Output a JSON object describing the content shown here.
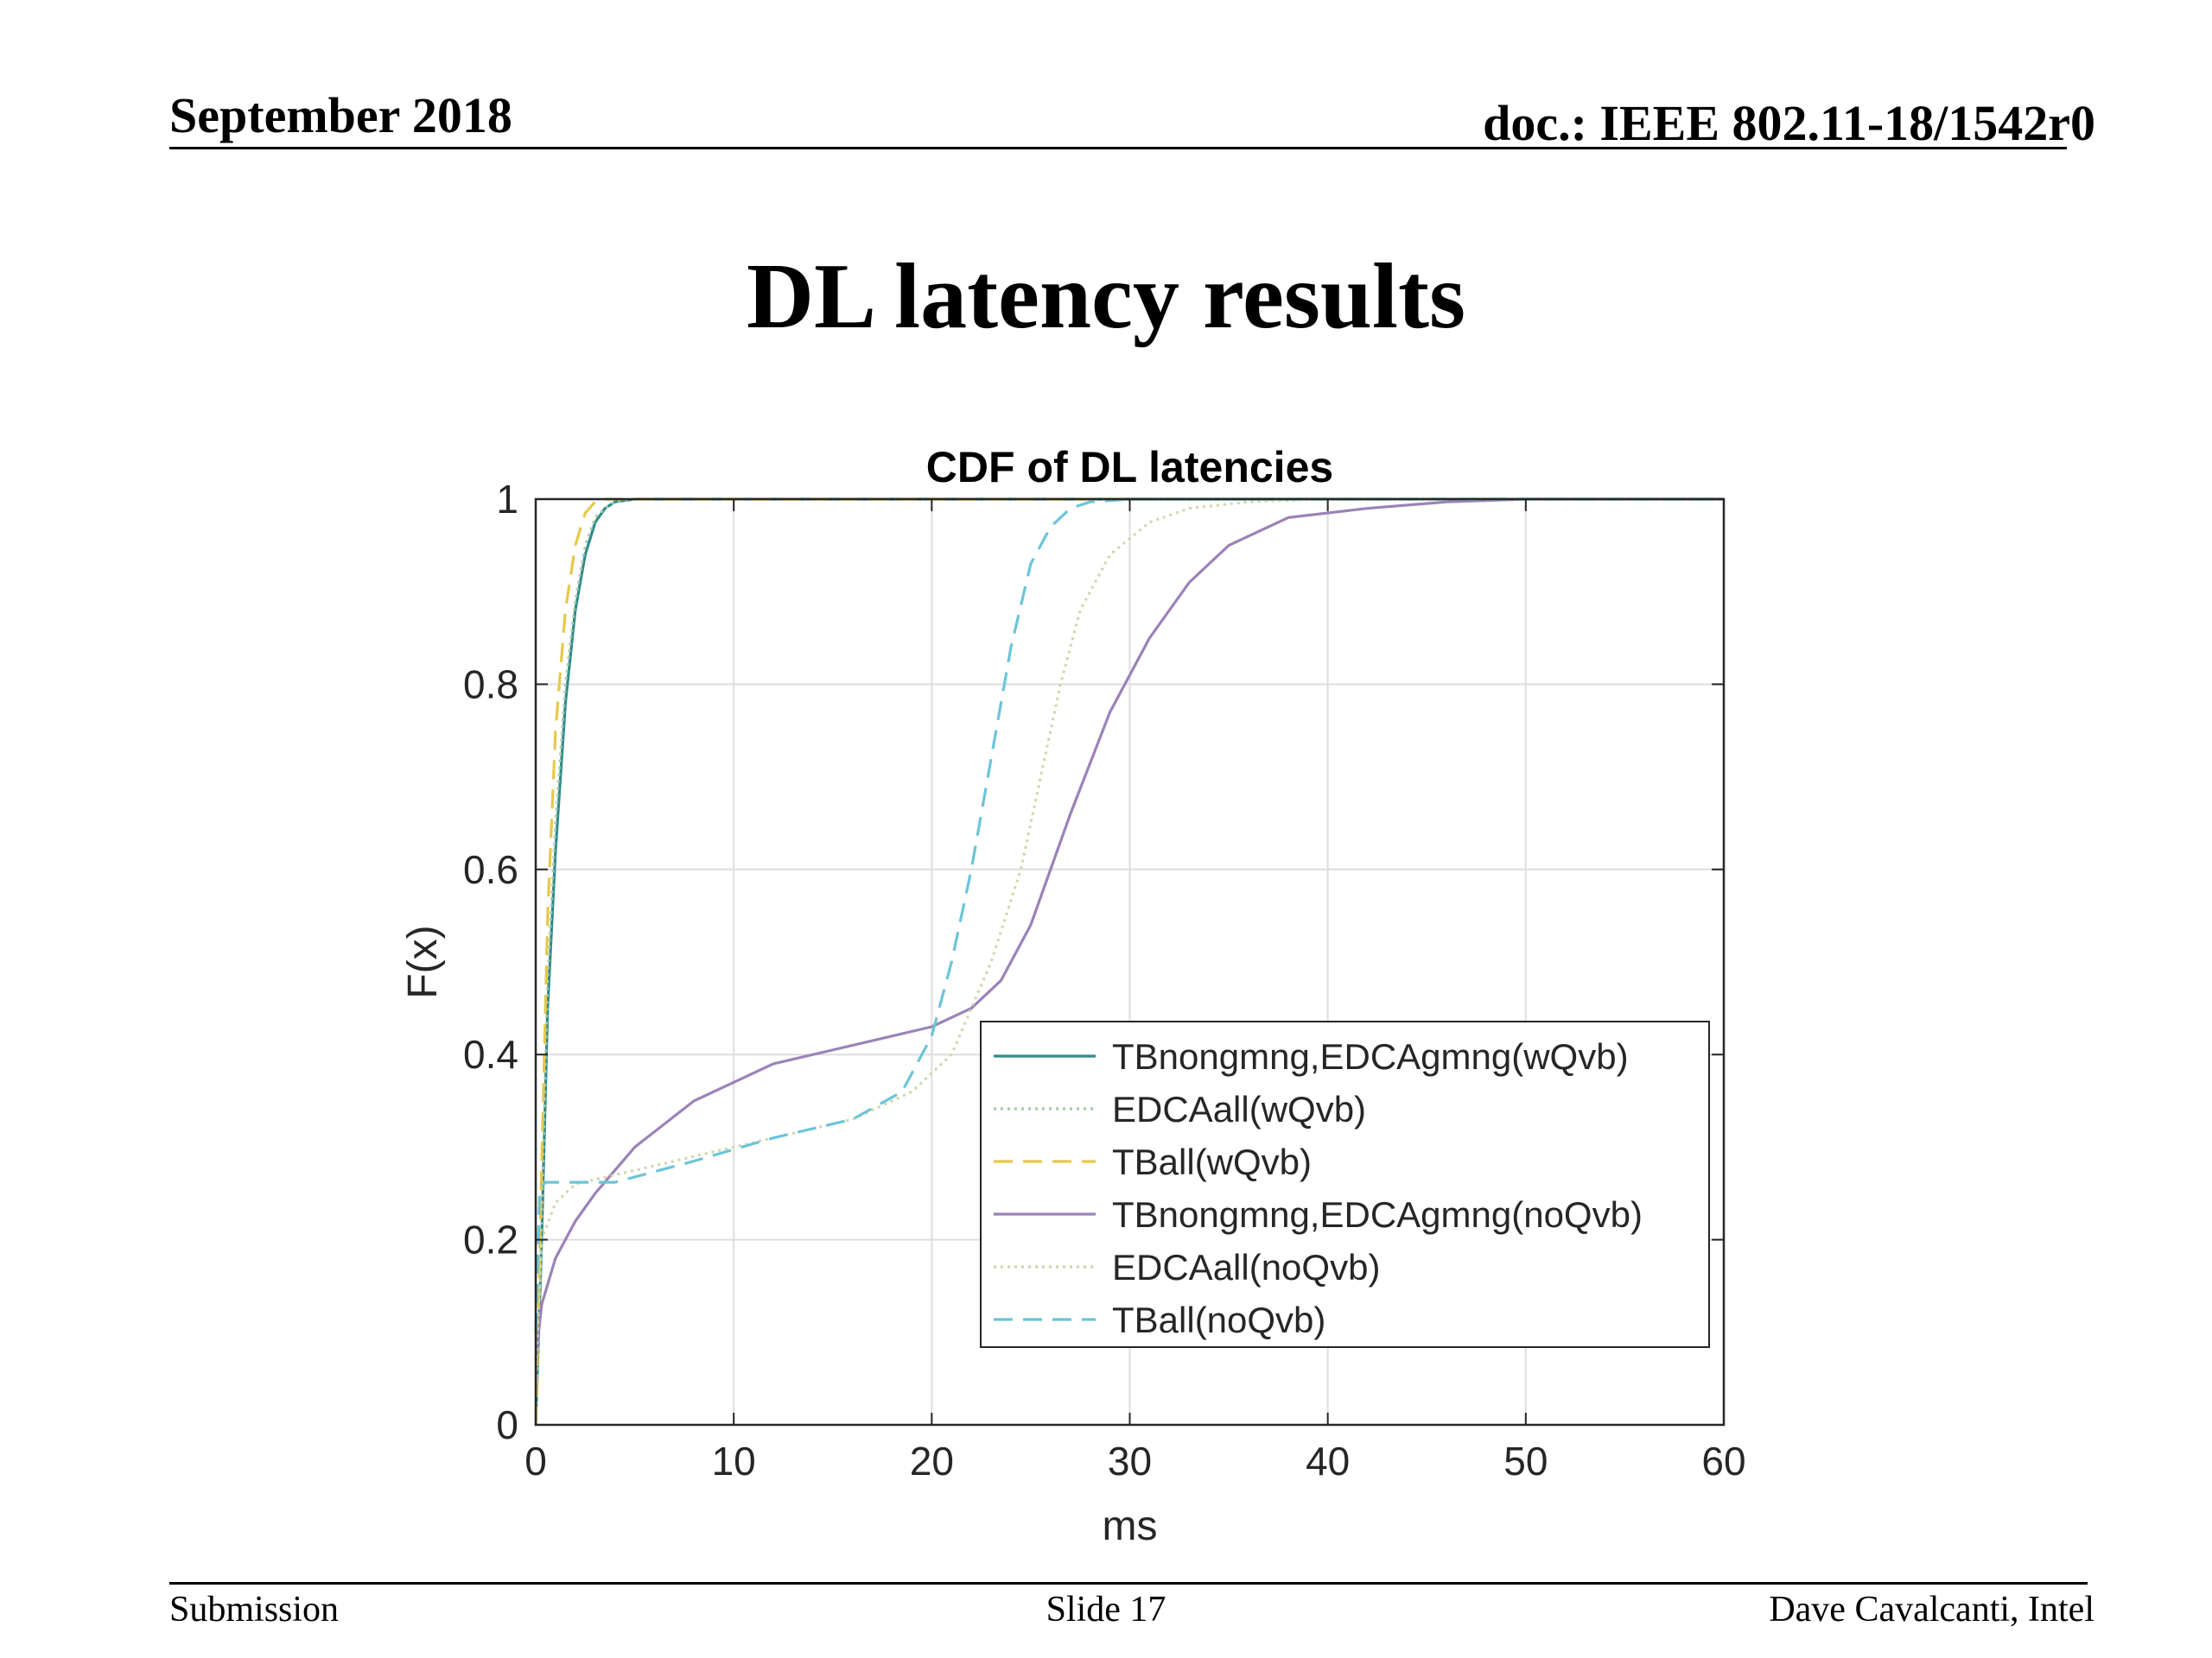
{
  "header": {
    "date": "September 2018",
    "doc": "doc.: IEEE 802.11-18/1542r0"
  },
  "slide": {
    "title": "DL latency results"
  },
  "footer": {
    "left": "Submission",
    "center": "Slide 17",
    "right": "Dave Cavalcanti, Intel"
  },
  "chart_data": {
    "type": "line",
    "title": "CDF of DL latencies",
    "xlabel": "ms",
    "ylabel": "F(x)",
    "xlim": [
      0,
      60
    ],
    "ylim": [
      0,
      1
    ],
    "xticks": [
      0,
      10,
      20,
      30,
      40,
      50,
      60
    ],
    "yticks": [
      0,
      0.2,
      0.4,
      0.6,
      0.8,
      1
    ],
    "xtick_labels": [
      "0",
      "10",
      "20",
      "30",
      "40",
      "50",
      "60"
    ],
    "ytick_labels": [
      "0",
      "0.2",
      "0.4",
      "0.6",
      "0.8",
      "1"
    ],
    "grid": true,
    "legend_position": "lower-right",
    "series": [
      {
        "name": "TBnongmng,EDCAgmng(wQvb)",
        "color": "#2e8b8b",
        "dash": "solid",
        "x": [
          0,
          0.3,
          0.6,
          1,
          1.5,
          2,
          2.5,
          3,
          3.5,
          4,
          5,
          60
        ],
        "y": [
          0,
          0.2,
          0.45,
          0.62,
          0.78,
          0.88,
          0.94,
          0.975,
          0.99,
          0.997,
          1,
          1
        ]
      },
      {
        "name": "EDCAall(wQvb)",
        "color": "#a8c8a8",
        "dash": "dotted",
        "x": [
          0,
          0.3,
          0.6,
          1,
          1.5,
          2,
          2.5,
          3,
          3.5,
          4,
          5,
          60
        ],
        "y": [
          0,
          0.22,
          0.48,
          0.65,
          0.8,
          0.89,
          0.95,
          0.98,
          0.99,
          0.997,
          1,
          1
        ]
      },
      {
        "name": "TBall(wQvb)",
        "color": "#e6c84a",
        "dash": "dashed",
        "x": [
          0,
          0.3,
          0.6,
          1,
          1.5,
          2,
          2.5,
          3,
          3.5,
          60
        ],
        "y": [
          0,
          0.28,
          0.55,
          0.75,
          0.88,
          0.95,
          0.985,
          0.997,
          1,
          1
        ]
      },
      {
        "name": "TBnongmng,EDCAgmng(noQvb)",
        "color": "#9b82b8",
        "dash": "solid",
        "x": [
          0,
          0.3,
          1,
          2,
          3,
          5,
          8,
          12,
          16,
          20,
          22,
          23.5,
          25,
          27,
          29,
          31,
          33,
          35,
          38,
          42,
          46,
          50,
          60
        ],
        "y": [
          0.07,
          0.13,
          0.18,
          0.22,
          0.25,
          0.3,
          0.35,
          0.39,
          0.41,
          0.43,
          0.45,
          0.48,
          0.54,
          0.66,
          0.77,
          0.85,
          0.91,
          0.95,
          0.98,
          0.99,
          0.997,
          1,
          1
        ]
      },
      {
        "name": "EDCAall(noQvb)",
        "color": "#c9d8a8",
        "dash": "dotted",
        "x": [
          0,
          0.3,
          1,
          2,
          4,
          8,
          12,
          16,
          19,
          21,
          23,
          24.5,
          25.5,
          26.5,
          27.5,
          29,
          31,
          33,
          36,
          40,
          60
        ],
        "y": [
          0.05,
          0.2,
          0.24,
          0.26,
          0.27,
          0.29,
          0.31,
          0.33,
          0.36,
          0.4,
          0.5,
          0.6,
          0.7,
          0.8,
          0.88,
          0.94,
          0.975,
          0.99,
          0.997,
          1,
          1
        ]
      },
      {
        "name": "TBall(noQvb)",
        "color": "#6cc4d8",
        "dash": "dashed",
        "x": [
          0,
          0.2,
          0.5,
          2,
          4,
          8,
          12,
          16,
          18.5,
          20,
          21,
          22,
          23,
          24,
          25,
          26,
          27,
          28,
          30,
          60
        ],
        "y": [
          0.1,
          0.255,
          0.262,
          0.262,
          0.262,
          0.285,
          0.31,
          0.33,
          0.36,
          0.42,
          0.5,
          0.6,
          0.72,
          0.84,
          0.93,
          0.97,
          0.99,
          0.997,
          1,
          1
        ]
      }
    ]
  }
}
